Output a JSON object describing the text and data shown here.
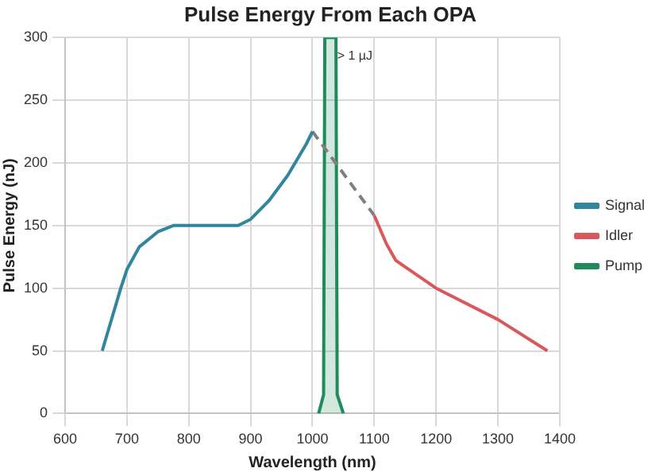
{
  "chart_data": {
    "type": "line",
    "title": "Pulse Energy From Each OPA",
    "xlabel": "Wavelength (nm)",
    "ylabel": "Pulse Energy (nJ)",
    "xlim": [
      600,
      1400
    ],
    "xticks": [
      600,
      700,
      800,
      900,
      1000,
      1100,
      1200,
      1300,
      1400
    ],
    "ylim": [
      0,
      300
    ],
    "yticks": [
      0,
      50,
      100,
      150,
      200,
      250,
      300
    ],
    "grid": true,
    "legend": "right",
    "marker": "none",
    "annotations": [
      {
        "text": "> 1 µJ",
        "x": 1040,
        "y": 285
      }
    ],
    "series": [
      {
        "name": "Signal",
        "color": "#31859c",
        "x": [
          660,
          690,
          700,
          720,
          750,
          775,
          880,
          900,
          930,
          960,
          990,
          1000
        ],
        "values": [
          50,
          100,
          115,
          133,
          145,
          150,
          150,
          155,
          170,
          190,
          215,
          225
        ]
      },
      {
        "color": "#7f7f7f",
        "line_style": "dashed",
        "x": [
          1000,
          1100
        ],
        "values": [
          225,
          158
        ]
      },
      {
        "name": "Idler",
        "color": "#d9595b",
        "x": [
          1100,
          1120,
          1135,
          1200,
          1300,
          1380
        ],
        "values": [
          158,
          135,
          122,
          100,
          75,
          50
        ]
      },
      {
        "name": "Pump",
        "type": "area",
        "color": "#1e8c5a",
        "x": [
          1010,
          1018,
          1020,
          1038,
          1040,
          1050
        ],
        "values": [
          0,
          15,
          300,
          300,
          15,
          0
        ]
      }
    ]
  }
}
